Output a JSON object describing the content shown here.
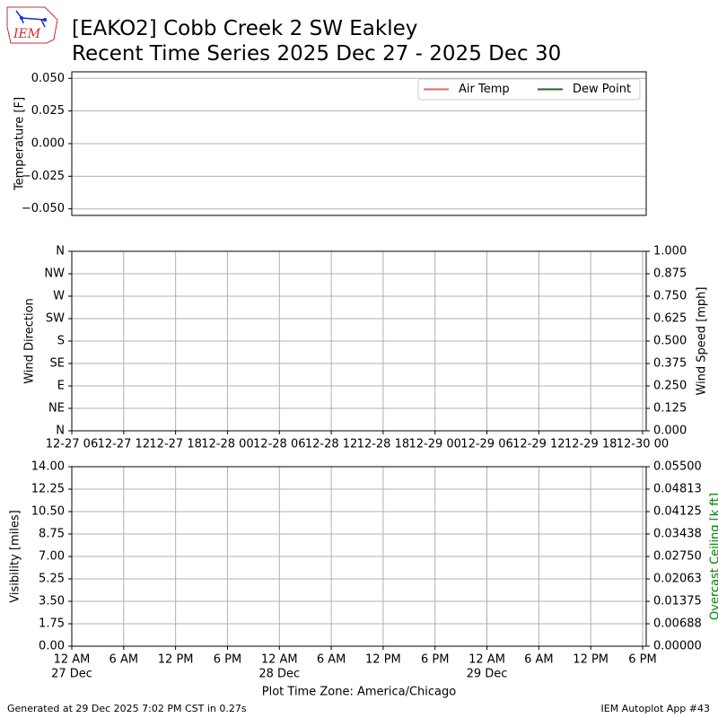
{
  "logo_text": "IEM",
  "title": "[EAKO2] Cobb Creek 2 SW Eakley",
  "subtitle": "Recent Time Series 2025 Dec 27 - 2025 Dec 30",
  "footer_left": "Generated at 29 Dec 2025 7:02 PM CST in 0.27s",
  "footer_right": "IEM Autoplot App #43",
  "chart_data": [
    {
      "type": "line",
      "ylabel": "Temperature [F]",
      "ylim": [
        -0.055,
        0.055
      ],
      "yticks": [
        {
          "value": 0.05,
          "label": "0.050"
        },
        {
          "value": 0.025,
          "label": "0.025"
        },
        {
          "value": 0,
          "label": "0.000"
        },
        {
          "value": -0.025,
          "label": "−0.025"
        },
        {
          "value": -0.05,
          "label": "−0.050"
        }
      ],
      "xlim": [
        "12-27 06:00",
        "12-30 00:25"
      ],
      "x": [],
      "grid": true,
      "xgrid": false,
      "legend": "upper right",
      "series": [
        {
          "name": "Air Temp",
          "color": "#e06666",
          "values": []
        },
        {
          "name": "Dew Point",
          "color": "#2e5e2e",
          "values": []
        }
      ]
    },
    {
      "type": "line",
      "ylabel": "Wind Direction",
      "y2label": "Wind Speed [mph]",
      "ylim": [
        0,
        360
      ],
      "yticks": [
        {
          "value": 0,
          "label": "N"
        },
        {
          "value": 45,
          "label": "NE"
        },
        {
          "value": 90,
          "label": "E"
        },
        {
          "value": 135,
          "label": "SE"
        },
        {
          "value": 180,
          "label": "S"
        },
        {
          "value": 225,
          "label": "SW"
        },
        {
          "value": 270,
          "label": "W"
        },
        {
          "value": 315,
          "label": "NW"
        },
        {
          "value": 360,
          "label": "N"
        }
      ],
      "y2lim": [
        0,
        1
      ],
      "y2ticks": [
        {
          "value": 0,
          "label": "0.000"
        },
        {
          "value": 0.125,
          "label": "0.125"
        },
        {
          "value": 0.25,
          "label": "0.250"
        },
        {
          "value": 0.375,
          "label": "0.375"
        },
        {
          "value": 0.5,
          "label": "0.500"
        },
        {
          "value": 0.625,
          "label": "0.625"
        },
        {
          "value": 0.75,
          "label": "0.750"
        },
        {
          "value": 0.875,
          "label": "0.875"
        },
        {
          "value": 1,
          "label": "1.000"
        }
      ],
      "xlim": [
        "12-27 06:00",
        "12-30 00:25"
      ],
      "xticks": [
        "12-27 06",
        "12-27 12",
        "12-27 18",
        "12-28 00",
        "12-28 06",
        "12-28 12",
        "12-28 18",
        "12-29 00",
        "12-29 06",
        "12-29 12",
        "12-29 18",
        "12-30 00"
      ],
      "grid": true,
      "xgrid": true
    },
    {
      "type": "line",
      "ylabel": "Visibility [miles]",
      "y2label": "Overcast Ceiling [k ft]",
      "y2label_color": "#008000",
      "ylim": [
        0,
        14
      ],
      "yticks": [
        {
          "value": 0,
          "label": "0.00"
        },
        {
          "value": 1.75,
          "label": "1.75"
        },
        {
          "value": 3.5,
          "label": "3.50"
        },
        {
          "value": 5.25,
          "label": "5.25"
        },
        {
          "value": 7,
          "label": "7.00"
        },
        {
          "value": 8.75,
          "label": "8.75"
        },
        {
          "value": 10.5,
          "label": "10.50"
        },
        {
          "value": 12.25,
          "label": "12.25"
        },
        {
          "value": 14,
          "label": "14.00"
        }
      ],
      "y2lim": [
        0,
        0.055
      ],
      "y2ticks": [
        {
          "value": 0,
          "label": "0.00000"
        },
        {
          "value": 0.006875,
          "label": "0.00688"
        },
        {
          "value": 0.01375,
          "label": "0.01375"
        },
        {
          "value": 0.020625,
          "label": "0.02063"
        },
        {
          "value": 0.0275,
          "label": "0.02750"
        },
        {
          "value": 0.034375,
          "label": "0.03438"
        },
        {
          "value": 0.04125,
          "label": "0.04125"
        },
        {
          "value": 0.048125,
          "label": "0.04813"
        },
        {
          "value": 0.055,
          "label": "0.05500"
        }
      ],
      "xlim": [
        "12-27 00:00",
        "12-29 18:25"
      ],
      "xticks": [
        {
          "value": "12-27 00",
          "label": "12 AM",
          "sublabel": "27 Dec"
        },
        {
          "value": "12-27 06",
          "label": "6 AM"
        },
        {
          "value": "12-27 12",
          "label": "12 PM"
        },
        {
          "value": "12-27 18",
          "label": "6 PM"
        },
        {
          "value": "12-28 00",
          "label": "12 AM",
          "sublabel": "28 Dec"
        },
        {
          "value": "12-28 06",
          "label": "6 AM"
        },
        {
          "value": "12-28 12",
          "label": "12 PM"
        },
        {
          "value": "12-28 18",
          "label": "6 PM"
        },
        {
          "value": "12-29 00",
          "label": "12 AM",
          "sublabel": "29 Dec"
        },
        {
          "value": "12-29 06",
          "label": "6 AM"
        },
        {
          "value": "12-29 12",
          "label": "12 PM"
        },
        {
          "value": "12-29 18",
          "label": "6 PM"
        }
      ],
      "xlabel": "Plot Time Zone: America/Chicago",
      "grid": true,
      "xgrid": true
    }
  ]
}
